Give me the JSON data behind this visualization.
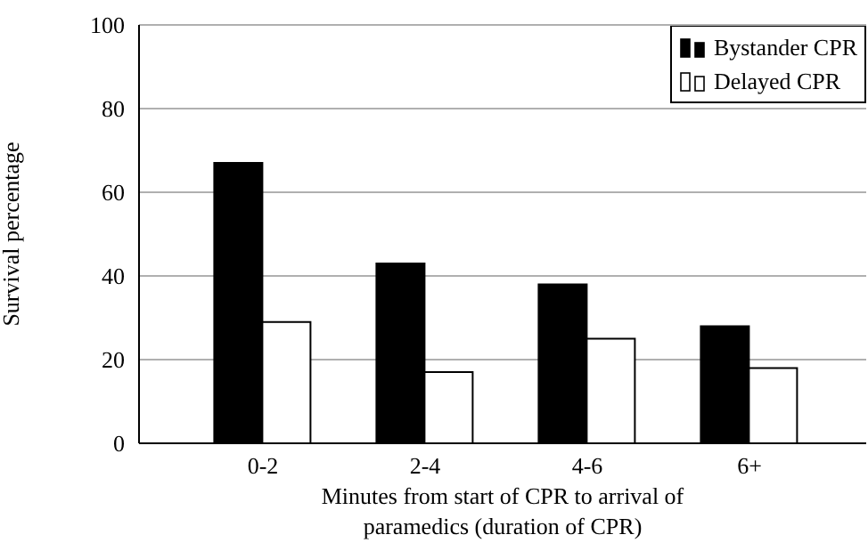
{
  "chart_data": {
    "type": "bar",
    "ylabel": "Survival percentage",
    "xlabel": "Minutes from start of CPR to arrival of paramedics (duration of CPR)",
    "categories": [
      "0-2",
      "2-4",
      "4-6",
      "6+"
    ],
    "series": [
      {
        "name": "Bystander CPR",
        "color": "#000000",
        "values": [
          67,
          43,
          38,
          28
        ]
      },
      {
        "name": "Delayed CPR",
        "color": "#ffffff",
        "values": [
          29,
          17,
          25,
          18
        ]
      }
    ],
    "ylim": [
      0,
      100
    ],
    "yticks": [
      0,
      20,
      40,
      60,
      80,
      100
    ],
    "grid": "y",
    "legend": "top right"
  }
}
